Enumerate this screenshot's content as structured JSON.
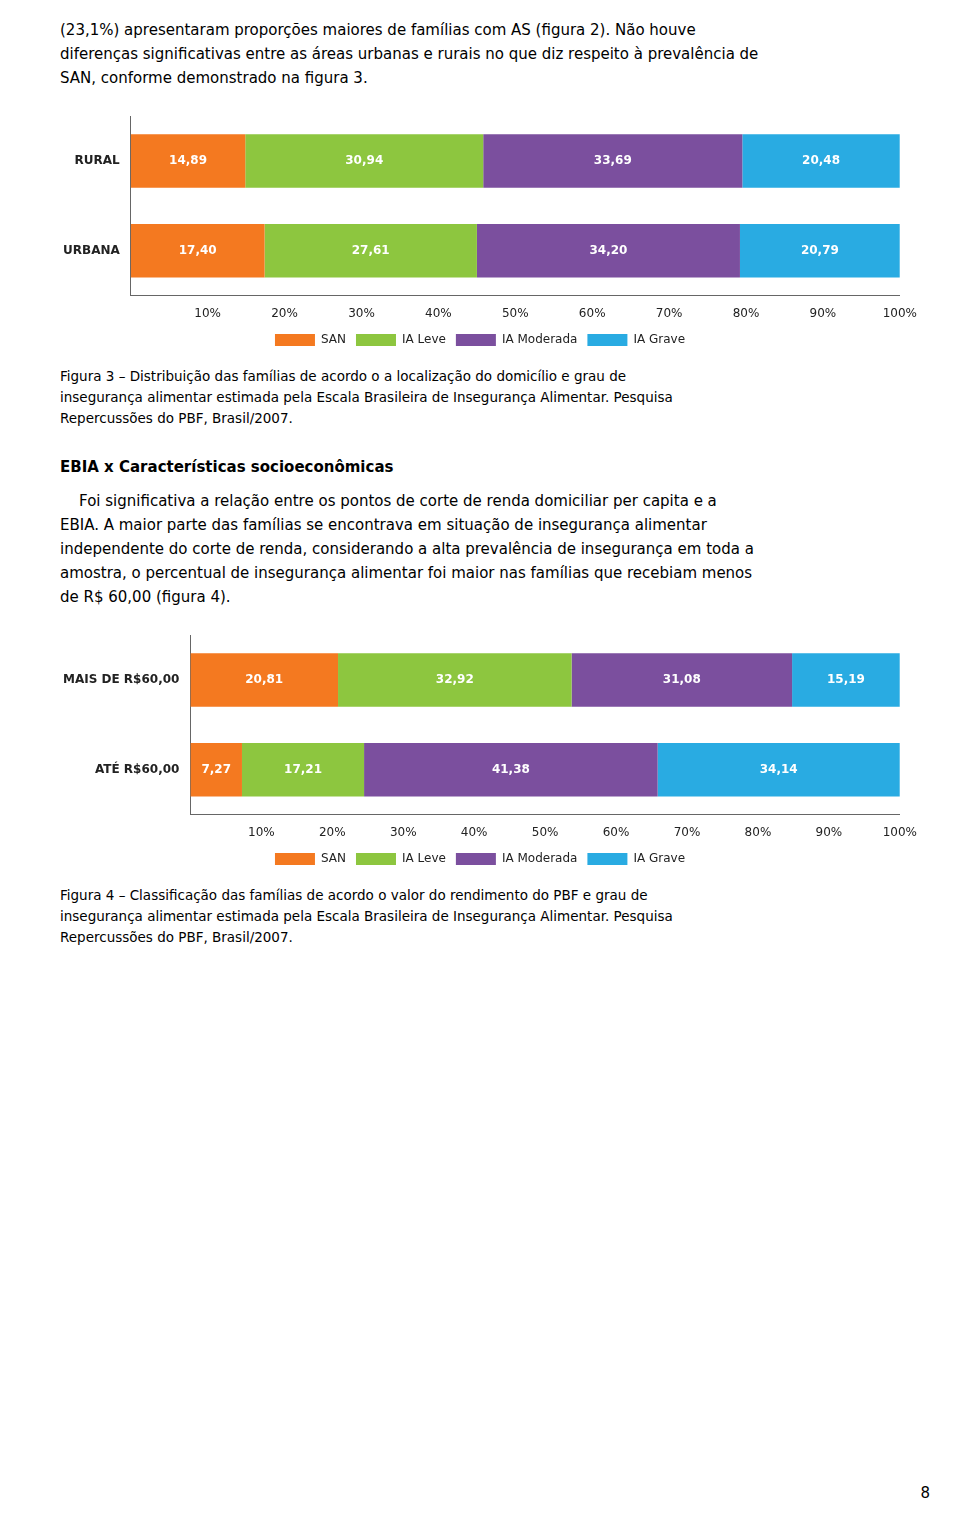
{
  "chart_data": [
    {
      "type": "bar",
      "orientation": "horizontal",
      "stacked": true,
      "data_labels": true,
      "grid": false,
      "legend": "bottom",
      "annotations": [
        "(23,1%) apresentaram proporções maiores de famílias com AS (figura 2). Não houve",
        "diferenças significativas entre as áreas urbanas e rurais no que diz respeito à prevalência de",
        "SAN, conforme demonstrado na figura 3."
      ],
      "title": [
        "Figura 3 – Distribuição das famílias de acordo o a localização do domicílio e grau de",
        "insegurança alimentar estimada pela Escala Brasileira de Insegurança Alimentar. Pesquisa",
        "Repercussões do PBF, Brasil/2007."
      ],
      "categories": [
        "RURAL",
        "URBANA"
      ],
      "series": [
        {
          "name": "SAN",
          "color": "#F47920",
          "values": [
            14.89,
            17.4
          ],
          "value_labels": [
            "14,89",
            "17,40"
          ]
        },
        {
          "name": "IA Leve",
          "color": "#8DC63F",
          "values": [
            30.94,
            27.61
          ],
          "value_labels": [
            "30,94",
            "27,61"
          ]
        },
        {
          "name": "IA Moderada",
          "color": "#7B4F9E",
          "values": [
            33.69,
            34.2
          ],
          "value_labels": [
            "33,69",
            "34,20"
          ]
        },
        {
          "name": "IA Grave",
          "color": "#29ABE2",
          "values": [
            20.48,
            20.79
          ],
          "value_labels": [
            "20,48",
            "20,79"
          ]
        }
      ],
      "xlim": [
        0,
        100
      ],
      "xticks": [
        {
          "value": 10,
          "label": "10%"
        },
        {
          "value": 20,
          "label": "20%"
        },
        {
          "value": 30,
          "label": "30%"
        },
        {
          "value": 40,
          "label": "40%"
        },
        {
          "value": 50,
          "label": "50%"
        },
        {
          "value": 60,
          "label": "60%"
        },
        {
          "value": 70,
          "label": "70%"
        },
        {
          "value": 80,
          "label": "80%"
        },
        {
          "value": 90,
          "label": "90%"
        },
        {
          "value": 100,
          "label": "100%"
        }
      ]
    },
    {
      "type": "bar",
      "orientation": "horizontal",
      "stacked": true,
      "data_labels": true,
      "grid": false,
      "legend": "bottom",
      "subtitle": "EBIA x Características socioeconômicas",
      "annotations": [
        "    Foi significativa a relação entre os pontos de corte de renda domiciliar per capita e a",
        "EBIA. A maior parte das famílias se encontrava em situação de insegurança alimentar",
        "independente do corte de renda, considerando a alta prevalência de insegurança em toda a",
        "amostra, o percentual de insegurança alimentar foi maior nas famílias que recebiam menos",
        "de R$ 60,00 (figura 4)."
      ],
      "title": [
        "Figura 4 – Classificação das famílias de acordo o valor do rendimento do PBF e grau de",
        "insegurança alimentar estimada pela Escala Brasileira de Insegurança Alimentar. Pesquisa",
        "Repercussões do PBF, Brasil/2007."
      ],
      "categories": [
        "MAIS DE R$60,00",
        "ATÉ R$60,00"
      ],
      "series": [
        {
          "name": "SAN",
          "color": "#F47920",
          "values": [
            20.81,
            7.27
          ],
          "value_labels": [
            "20,81",
            "7,27"
          ]
        },
        {
          "name": "IA Leve",
          "color": "#8DC63F",
          "values": [
            32.92,
            17.21
          ],
          "value_labels": [
            "32,92",
            "17,21"
          ]
        },
        {
          "name": "IA Moderada",
          "color": "#7B4F9E",
          "values": [
            31.08,
            41.38
          ],
          "value_labels": [
            "31,08",
            "41,38"
          ]
        },
        {
          "name": "IA Grave",
          "color": "#29ABE2",
          "values": [
            15.19,
            34.14
          ],
          "value_labels": [
            "15,19",
            "34,14"
          ]
        }
      ],
      "xlim": [
        0,
        100
      ],
      "xticks": [
        {
          "value": 10,
          "label": "10%"
        },
        {
          "value": 20,
          "label": "20%"
        },
        {
          "value": 30,
          "label": "30%"
        },
        {
          "value": 40,
          "label": "40%"
        },
        {
          "value": 50,
          "label": "50%"
        },
        {
          "value": 60,
          "label": "60%"
        },
        {
          "value": 70,
          "label": "70%"
        },
        {
          "value": 80,
          "label": "80%"
        },
        {
          "value": 90,
          "label": "90%"
        },
        {
          "value": 100,
          "label": "100%"
        }
      ]
    }
  ],
  "annotations": [
    "8"
  ]
}
